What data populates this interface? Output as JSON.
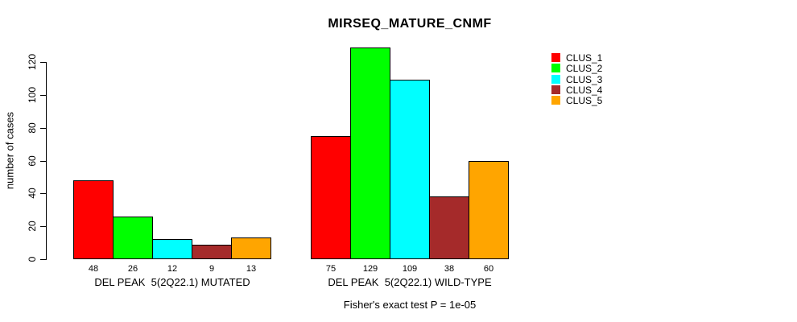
{
  "figure": {
    "background_color": "#ffffff",
    "text_color": "#000000"
  },
  "chart_data": {
    "type": "bar",
    "title": "MIRSEQ_MATURE_CNMF",
    "ylabel": "number of cases",
    "xlabel": "",
    "ylim": [
      0,
      130
    ],
    "yticks": [
      0,
      20,
      40,
      60,
      80,
      100,
      120
    ],
    "grid": false,
    "legend_position": "top-right",
    "bar_border_color": "#000000",
    "clusters": [
      {
        "name": "CLUS_1",
        "color": "#ff0000"
      },
      {
        "name": "CLUS_2",
        "color": "#00ff00"
      },
      {
        "name": "CLUS_3",
        "color": "#00ffff"
      },
      {
        "name": "CLUS_4",
        "color": "#a52a2a"
      },
      {
        "name": "CLUS_5",
        "color": "#ffa500"
      }
    ],
    "groups": [
      {
        "label": "DEL PEAK  5(2Q22.1) MUTATED",
        "values": [
          48,
          26,
          12,
          9,
          13
        ]
      },
      {
        "label": "DEL PEAK  5(2Q22.1) WILD-TYPE",
        "values": [
          75,
          129,
          109,
          38,
          60
        ]
      }
    ],
    "annotation": "Fisher's exact test P = 1e-05"
  }
}
